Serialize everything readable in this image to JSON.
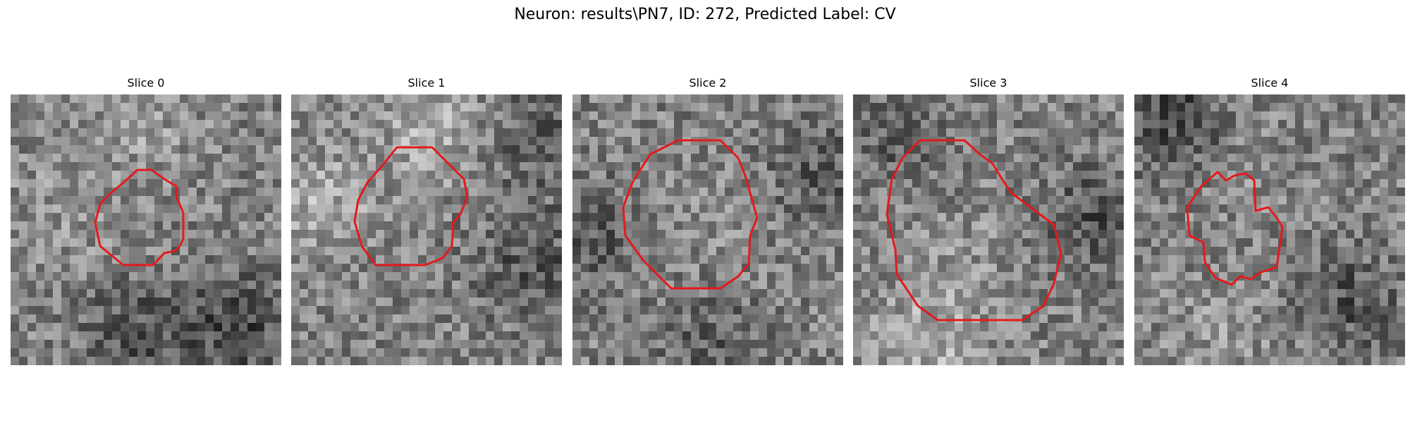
{
  "figure": {
    "title": "Neuron: results\\PN7, ID: 272, Predicted Label: CV",
    "contour_color": "#e31a1c"
  },
  "panels": [
    {
      "title": "Slice 0"
    },
    {
      "title": "Slice 1"
    },
    {
      "title": "Slice 2"
    },
    {
      "title": "Slice 3"
    },
    {
      "title": "Slice 4"
    }
  ]
}
